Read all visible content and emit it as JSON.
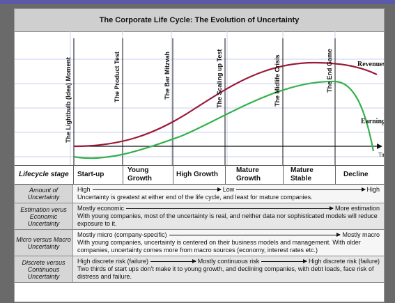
{
  "title": "The Corporate Life Cycle: The Evolution of Uncertainty",
  "milestones": [
    "The Lightbulb (Idea) Moment",
    "The Product Test",
    "The Bar Mitzvah",
    "The Scaling up Test",
    "The Midlife Crisis",
    "The End Game"
  ],
  "curves": {
    "revenue_label": "Revenues",
    "earnings_label": "Earnings",
    "time_label": "Time",
    "revenue_color": "#9b1a3a",
    "earnings_color": "#33b24a"
  },
  "lifecycle": {
    "label": "Lifecycle stage",
    "stages": [
      "Start-up",
      "Young Growth",
      "High Growth",
      "Mature Growth",
      "Mature Stable",
      "Decline"
    ]
  },
  "rows": [
    {
      "head": "Amount of Uncertainty",
      "scale": [
        "High",
        "Low",
        "High"
      ],
      "desc": "Uncertainty is greatest at either end of the life cycle, and least for mature companies."
    },
    {
      "head": "Estimation verus Economic Uncertainty",
      "scale": [
        "Mostly economic",
        "More estimation"
      ],
      "desc": "With young companies, most of the uncertainty is real, and neither data nor sophisticated models will reduce exposure to it."
    },
    {
      "head": "Micro versus Macro Uncertainty",
      "scale": [
        "Mostly micro (company-specific)",
        "Mostly macro"
      ],
      "desc": "With young companies, uncertainty is centered on their business models and management. With older companies, uncertainty comes more from macro sources (economy, interest rates etc.)"
    },
    {
      "head": "Discrete versus Continuous Uncertainty",
      "scale": [
        "High discrete risk (failure)",
        "Mostly continuous risk",
        "High discrete risk (failure)"
      ],
      "desc": "Two thirds of start ups don't make it to young growth, and declining companies, with debt loads, face risk of distress and failure."
    }
  ]
}
